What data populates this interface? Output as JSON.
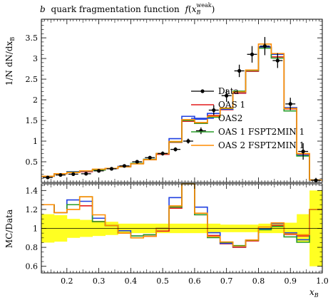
{
  "chart_data": {
    "type": "line",
    "title": "b quark fragmentation function f(x_B^weak)",
    "title_parts": {
      "b": "b",
      "text": "quark fragmentation function",
      "f": "f",
      "x": "x",
      "sub": "B",
      "sup": "weak"
    },
    "xlabel": "x_B",
    "xlabel_parts": {
      "x": "x",
      "sub": "B"
    },
    "ylabel": "1/N dN/dx_B",
    "ylabel_parts": {
      "text": "1/N dN/dx",
      "sub": "B"
    },
    "ratio_ylabel": "MC/Data",
    "xlim": [
      0.12,
      1.0
    ],
    "ylim": [
      0,
      3.95
    ],
    "ratio_ylim": [
      0.53,
      1.47
    ],
    "x_ticks": [
      "0.2",
      "0.3",
      "0.4",
      "0.5",
      "0.6",
      "0.7",
      "0.8",
      "0.9",
      "1.0"
    ],
    "y_ticks": [
      "0.5",
      "1",
      "1.5",
      "2",
      "2.5",
      "3",
      "3.5"
    ],
    "ratio_ticks": [
      "0.6",
      "0.8",
      "1",
      "1.2",
      "1.4"
    ],
    "bin_edges": [
      0.12,
      0.16,
      0.2,
      0.24,
      0.28,
      0.32,
      0.36,
      0.4,
      0.44,
      0.48,
      0.52,
      0.56,
      0.6,
      0.64,
      0.68,
      0.72,
      0.76,
      0.8,
      0.84,
      0.88,
      0.92,
      0.96,
      1.0
    ],
    "data": {
      "name": "Data",
      "color": "#000000",
      "x": [
        0.14,
        0.18,
        0.22,
        0.26,
        0.3,
        0.34,
        0.38,
        0.42,
        0.46,
        0.5,
        0.54,
        0.58,
        0.62,
        0.66,
        0.7,
        0.74,
        0.78,
        0.82,
        0.86,
        0.9,
        0.94,
        0.98
      ],
      "y": [
        0.12,
        0.18,
        0.2,
        0.21,
        0.28,
        0.33,
        0.4,
        0.5,
        0.6,
        0.7,
        0.8,
        1.0,
        1.25,
        1.75,
        2.1,
        2.7,
        3.1,
        3.3,
        2.95,
        1.9,
        0.75,
        0.05
      ],
      "yerr": [
        0.03,
        0.03,
        0.03,
        0.03,
        0.03,
        0.03,
        0.04,
        0.04,
        0.04,
        0.05,
        0.05,
        0.06,
        0.08,
        0.12,
        0.15,
        0.15,
        0.2,
        0.22,
        0.18,
        0.15,
        0.2,
        0.06
      ],
      "band_half_width": [
        0.15,
        0.14,
        0.1,
        0.09,
        0.08,
        0.07,
        0.05,
        0.05,
        0.05,
        0.05,
        0.05,
        0.05,
        0.05,
        0.05,
        0.04,
        0.04,
        0.04,
        0.05,
        0.05,
        0.06,
        0.15,
        0.4
      ]
    },
    "series": [
      {
        "name": "OAS 1",
        "color": "#e41a1c",
        "values": [
          0.15,
          0.21,
          0.25,
          0.26,
          0.3,
          0.34,
          0.38,
          0.46,
          0.55,
          0.68,
          0.97,
          1.48,
          1.43,
          1.62,
          1.76,
          2.16,
          2.69,
          3.26,
          3.04,
          1.78,
          0.69,
          0.06
        ]
      },
      {
        "name": "OAS2",
        "color": "#2040e0",
        "values": [
          0.15,
          0.21,
          0.26,
          0.27,
          0.31,
          0.34,
          0.39,
          0.46,
          0.56,
          0.7,
          1.06,
          1.6,
          1.53,
          1.67,
          1.77,
          2.18,
          2.71,
          3.28,
          3.1,
          1.81,
          0.66,
          0.06
        ]
      },
      {
        "name": "OAS 1 FSPT2MIN 1",
        "color": "#2a9d2a",
        "values": [
          0.15,
          0.21,
          0.25,
          0.28,
          0.3,
          0.34,
          0.38,
          0.46,
          0.56,
          0.7,
          0.98,
          1.5,
          1.43,
          1.58,
          1.79,
          2.21,
          2.71,
          3.25,
          3.01,
          1.73,
          0.64,
          0.06
        ]
      },
      {
        "name": "OAS 2 FSPT2MIN 1",
        "color": "#ff8c00",
        "values": [
          0.15,
          0.21,
          0.24,
          0.28,
          0.32,
          0.34,
          0.38,
          0.45,
          0.55,
          0.7,
          0.99,
          1.52,
          1.45,
          1.6,
          1.8,
          2.19,
          2.72,
          3.35,
          3.12,
          1.79,
          0.7,
          0.06
        ]
      }
    ],
    "legend_position": "center-right"
  }
}
